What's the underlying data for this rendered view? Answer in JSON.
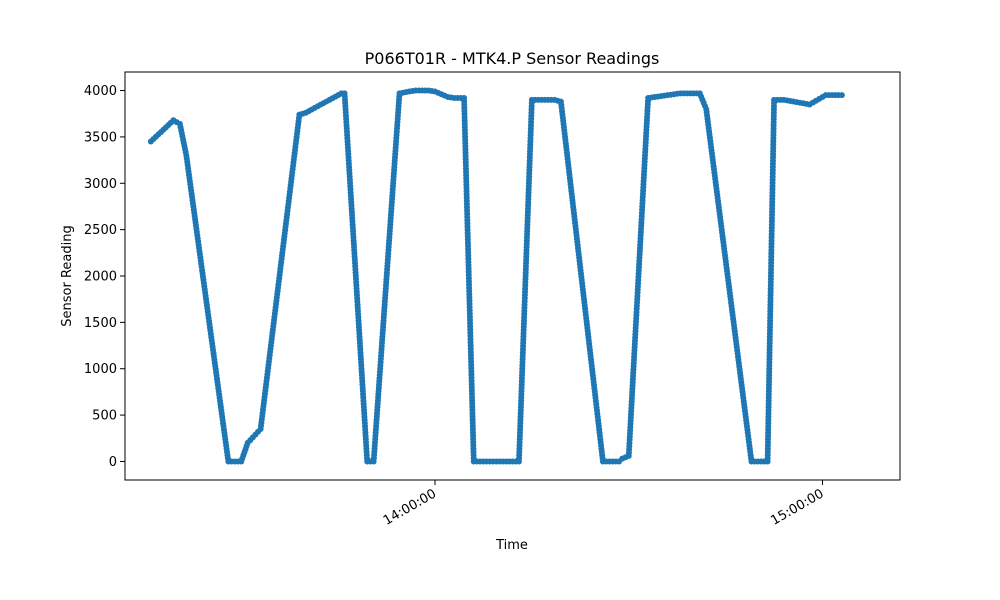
{
  "chart_data": {
    "type": "line",
    "title": "P066T01R - MTK4.P Sensor Readings",
    "xlabel": "Time",
    "ylabel": "Sensor Reading",
    "marker": "circle",
    "color": "#1f77b4",
    "grid": false,
    "legend": "none",
    "x_unit": "minutes",
    "x_range": [
      "13:16:00",
      "15:03:00"
    ],
    "xlim": [
      "13:12:00",
      "15:12:00"
    ],
    "x_ticks": [
      "14:00:00",
      "15:00:00"
    ],
    "y_ticks": [
      "0",
      "500",
      "1000",
      "1500",
      "2000",
      "2500",
      "3000",
      "3500",
      "4000"
    ],
    "ylim": [
      -200,
      4200
    ],
    "series": [
      {
        "x": [
          "13:16:00",
          "13:19:30",
          "13:20:30",
          "13:21:30",
          "13:28:00",
          "13:30:00",
          "13:31:00",
          "13:33:00",
          "13:39:00",
          "13:40:00",
          "13:45:30",
          "13:46:00",
          "13:49:30",
          "13:50:30",
          "13:54:30",
          "13:56:00",
          "13:57:00",
          "13:59:00",
          "14:00:00",
          "14:02:00",
          "14:03:00",
          "14:04:30",
          "14:06:00",
          "14:13:00",
          "14:15:00",
          "14:16:00",
          "14:18:30",
          "14:19:30",
          "14:26:00",
          "14:28:30",
          "14:29:00",
          "14:30:00",
          "14:33:00",
          "14:38:00",
          "14:41:00",
          "14:42:00",
          "14:49:00",
          "14:51:30",
          "14:52:30",
          "14:54:00",
          "14:58:00",
          "15:00:30",
          "15:03:00"
        ],
        "values": [
          3450,
          3680,
          3640,
          3300,
          0,
          0,
          200,
          350,
          3740,
          3760,
          3970,
          3970,
          0,
          0,
          3970,
          3990,
          4000,
          4000,
          3990,
          3930,
          3920,
          3920,
          0,
          0,
          3900,
          3900,
          3900,
          3880,
          0,
          0,
          30,
          60,
          3920,
          3970,
          3970,
          3800,
          0,
          0,
          3900,
          3900,
          3850,
          3950,
          3950
        ]
      }
    ]
  }
}
